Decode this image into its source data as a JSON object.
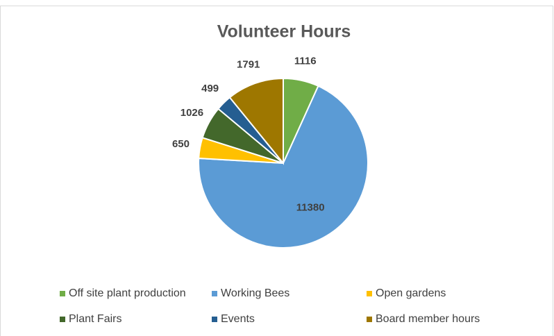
{
  "chart_data": {
    "type": "pie",
    "title": "Volunteer Hours",
    "categories": [
      "Off site plant production",
      "Working Bees",
      "Open gardens",
      "Plant Fairs",
      "Events",
      "Board member hours"
    ],
    "values": [
      1116,
      11380,
      650,
      1026,
      499,
      1791
    ],
    "colors": [
      "#70ad47",
      "#5b9bd5",
      "#ffc000",
      "#43682b",
      "#255e91",
      "#9e7700"
    ],
    "legend": "bottom"
  }
}
